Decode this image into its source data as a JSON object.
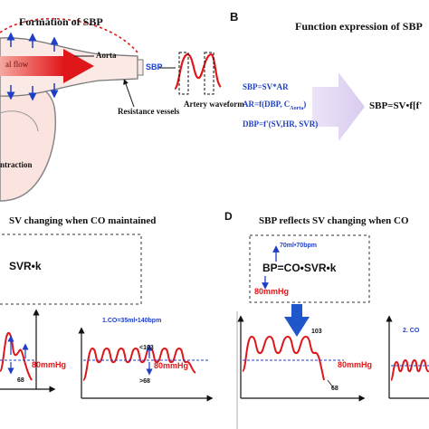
{
  "colors": {
    "red": "#e0171a",
    "blue": "#1f3fc4",
    "arrow_lavender": "#e4d9f5",
    "dark_blue": "#1f56c9"
  },
  "panel_a": {
    "title": "Formation of SBP",
    "flow_label": "al flow",
    "aorta_label": "Aorta",
    "sbp_label": "SBP",
    "resistance_label": "Resistance vessels",
    "artery_label": "Artery waveform",
    "contraction_label": "ntraction"
  },
  "panel_b": {
    "letter": "B",
    "title": "Function expression of SBP",
    "eq1": "SBP=SV*AR",
    "eq2": "AR=f(DBP, C",
    "eq2_sub": "Aorta",
    "eq2_end": ")",
    "eq3": "DBP=f'(SV,HR, SVR)",
    "result": "SBP=SV•f[f'"
  },
  "panel_c": {
    "title": "SV changing when CO maintained",
    "formula": "SVR•k",
    "left_label": "80mmHg",
    "left_bottom": "68",
    "right_top": "1.CO=35ml•140bpm",
    "right_peak": "<103",
    "right_low": ">68",
    "right_label": "80mmHg"
  },
  "panel_d": {
    "letter": "D",
    "title": "SBP reflects SV changing when CO",
    "box_top": "70ml•70bpm",
    "box_formula": "BP=CO•SVR•k",
    "box_bottom": "80mmHg",
    "peak": "103",
    "label": "80mmHg",
    "bottom": "68",
    "right_top": "2. CO"
  }
}
